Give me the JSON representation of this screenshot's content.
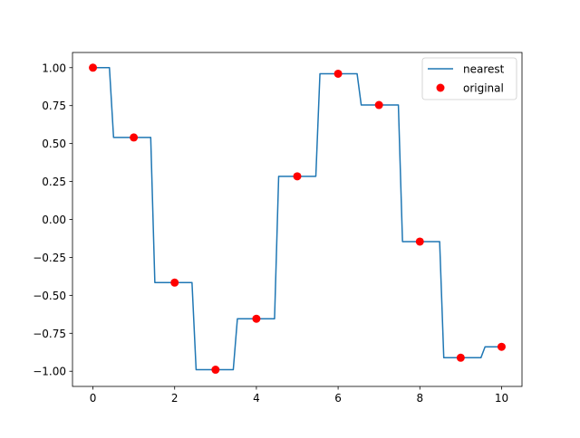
{
  "chart_data": {
    "type": "line",
    "title": "",
    "xlabel": "",
    "ylabel": "",
    "xlim": [
      -0.5,
      10.5
    ],
    "ylim": [
      -1.1,
      1.1
    ],
    "x_ticks": [
      0,
      2,
      4,
      6,
      8,
      10
    ],
    "y_ticks": [
      -1.0,
      -0.75,
      -0.5,
      -0.25,
      0.0,
      0.25,
      0.5,
      0.75,
      1.0
    ],
    "x_tick_labels": [
      "0",
      "2",
      "4",
      "6",
      "8",
      "10"
    ],
    "y_tick_labels": [
      "−1.00",
      "−0.75",
      "−0.50",
      "−0.25",
      "0.00",
      "0.25",
      "0.50",
      "0.75",
      "1.00"
    ],
    "grid": false,
    "legend": {
      "placement": "top-right",
      "entries": [
        "nearest",
        "original"
      ]
    },
    "series": [
      {
        "name": "nearest",
        "kind": "step-nearest",
        "color": "#1f77b4",
        "x": [
          0,
          1,
          2,
          3,
          4,
          5,
          6,
          7,
          8,
          9,
          10
        ],
        "y": [
          1.0,
          0.54,
          -0.416,
          -0.99,
          -0.654,
          0.284,
          0.96,
          0.754,
          -0.146,
          -0.911,
          -0.839
        ]
      },
      {
        "name": "original",
        "kind": "scatter",
        "color": "#ff0000",
        "x": [
          0,
          1,
          2,
          3,
          4,
          5,
          6,
          7,
          8,
          9,
          10
        ],
        "y": [
          1.0,
          0.54,
          -0.416,
          -0.99,
          -0.654,
          0.284,
          0.96,
          0.754,
          -0.146,
          -0.911,
          -0.839
        ]
      }
    ]
  }
}
